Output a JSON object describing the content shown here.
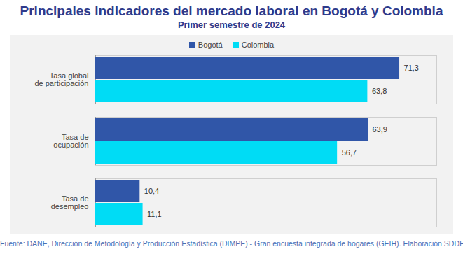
{
  "chart_data": {
    "type": "bar",
    "orientation": "horizontal",
    "title": "Principales indicadores del mercado laboral en Bogotá y Colombia",
    "subtitle": "Primer semestre de 2024",
    "caption": "Fuente: DANE, Dirección de Metodología y Producción Estadística (DIMPE) - Gran encuesta integrada de hogares (GEIH). Elaboración SDDE-ODEB.",
    "categories": [
      "Tasa global\nde participación",
      "Tasa de\nocupación",
      "Tasa de\ndesempleo"
    ],
    "series": [
      {
        "name": "Bogotá",
        "color": "#3056a8",
        "values": [
          71.3,
          63.9,
          10.4
        ],
        "value_labels": [
          "71,3",
          "63,9",
          "10,4"
        ]
      },
      {
        "name": "Colombia",
        "color": "#00dcf5",
        "values": [
          63.8,
          56.7,
          11.1
        ],
        "value_labels": [
          "63,8",
          "56,7",
          "11,1"
        ]
      }
    ],
    "xlim": [
      0,
      80
    ],
    "grid": false,
    "legend": "top",
    "data_labels": true,
    "tick_labels": "y"
  }
}
